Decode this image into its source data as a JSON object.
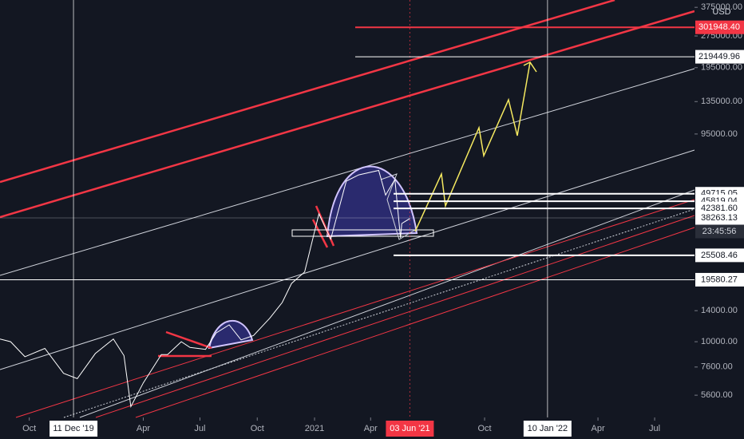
{
  "chart_data": {
    "type": "line",
    "log_scale": true,
    "currency": "USD",
    "color": "#ffffff",
    "x": [
      "2019-08-15",
      "2019-09-01",
      "2019-09-24",
      "2019-10-26",
      "2019-11-25",
      "2019-12-17",
      "2020-01-15",
      "2020-02-13",
      "2020-03-01",
      "2020-03-12",
      "2020-04-01",
      "2020-04-30",
      "2020-05-10",
      "2020-06-01",
      "2020-06-15",
      "2020-07-10",
      "2020-07-27",
      "2020-08-17",
      "2020-09-05",
      "2020-09-25",
      "2020-10-21",
      "2020-11-10",
      "2020-11-25",
      "2020-12-16",
      "2021-01-08",
      "2021-01-27",
      "2021-02-21",
      "2021-03-13",
      "2021-04-14",
      "2021-04-25",
      "2021-05-10",
      "2021-05-19",
      "2021-05-21",
      "2021-06-03"
    ],
    "values": [
      10300,
      10000,
      8500,
      9300,
      7100,
      6700,
      8800,
      10300,
      8600,
      4950,
      6400,
      8700,
      8700,
      10000,
      9400,
      9200,
      11000,
      12000,
      10200,
      10700,
      12900,
      15300,
      18800,
      21300,
      40000,
      30400,
      57000,
      61000,
      64000,
      49000,
      58000,
      30800,
      36000,
      38000
    ],
    "xlim": [
      "2019-08-15",
      "2022-09-03"
    ],
    "ylim": [
      4400,
      406000
    ],
    "yticks": [
      {
        "value": 5600,
        "label": "5600.00"
      },
      {
        "value": 7600,
        "label": "7600.00"
      },
      {
        "value": 10000,
        "label": "10000.00"
      },
      {
        "value": 14000,
        "label": "14000.00"
      },
      {
        "value": 95000,
        "label": "95000.00"
      },
      {
        "value": 135000,
        "label": "135000.00"
      },
      {
        "value": 195000,
        "label": "195000.00"
      },
      {
        "value": 275000,
        "label": "275000.00"
      },
      {
        "value": 375000,
        "label": "375000.00"
      }
    ],
    "xticks": [
      {
        "value": "2019-10-01",
        "label": "Oct"
      },
      {
        "value": "2020-04-01",
        "label": "Apr"
      },
      {
        "value": "2020-07-01",
        "label": "Jul"
      },
      {
        "value": "2020-10-01",
        "label": "Oct"
      },
      {
        "value": "2021-01-01",
        "label": "2021"
      },
      {
        "value": "2021-04-01",
        "label": "Apr"
      },
      {
        "value": "2021-10-01",
        "label": "Oct"
      },
      {
        "value": "2022-04-01",
        "label": "Apr"
      },
      {
        "value": "2022-07-01",
        "label": "Jul"
      }
    ],
    "x_markers": [
      {
        "value": "2019-12-11",
        "label": "11 Dec '19",
        "color": "#ffffff"
      },
      {
        "value": "2021-06-03",
        "label": "03 Jun '21",
        "color": "#f23645"
      },
      {
        "value": "2022-01-10",
        "label": "10 Jan '22",
        "color": "#ffffff"
      }
    ],
    "price_levels": [
      {
        "value": 301948.4,
        "label": "301948.40",
        "color": "#f23645"
      },
      {
        "value": 219449.96,
        "label": "219449.96",
        "color": "#ffffff"
      },
      {
        "value": 49715.05,
        "label": "49715.05",
        "color": "#ffffff"
      },
      {
        "value": 45819.04,
        "label": "45819.04",
        "color": "#ffffff"
      },
      {
        "value": 42381.6,
        "label": "42381.60",
        "color": "#ffffff"
      },
      {
        "value": 38263.13,
        "label": "38263.13",
        "color": "#ffffff"
      },
      {
        "value": 25508.46,
        "label": "25508.46",
        "color": "#ffffff"
      },
      {
        "value": 19580.27,
        "label": "19580.27",
        "color": "#ffffff"
      }
    ],
    "countdown": "23:45:56"
  }
}
